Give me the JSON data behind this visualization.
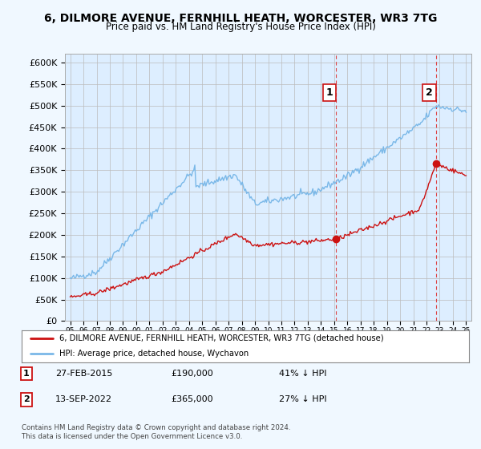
{
  "title": "6, DILMORE AVENUE, FERNHILL HEATH, WORCESTER, WR3 7TG",
  "subtitle": "Price paid vs. HM Land Registry's House Price Index (HPI)",
  "ylim": [
    0,
    620000
  ],
  "yticks": [
    0,
    50000,
    100000,
    150000,
    200000,
    250000,
    300000,
    350000,
    400000,
    450000,
    500000,
    550000,
    600000
  ],
  "ytick_labels": [
    "£0",
    "£50K",
    "£100K",
    "£150K",
    "£200K",
    "£250K",
    "£300K",
    "£350K",
    "£400K",
    "£450K",
    "£500K",
    "£550K",
    "£600K"
  ],
  "hpi_color": "#7ab8e8",
  "price_color": "#cc1111",
  "vline_color": "#dd4444",
  "transaction1_date": 2015.15,
  "transaction1_price": 190000,
  "transaction1_label": "1",
  "transaction2_date": 2022.71,
  "transaction2_price": 365000,
  "transaction2_label": "2",
  "legend_house_label": "6, DILMORE AVENUE, FERNHILL HEATH, WORCESTER, WR3 7TG (detached house)",
  "legend_hpi_label": "HPI: Average price, detached house, Wychavon",
  "annotation1_date": "27-FEB-2015",
  "annotation1_price": "£190,000",
  "annotation1_pct": "41% ↓ HPI",
  "annotation2_date": "13-SEP-2022",
  "annotation2_price": "£365,000",
  "annotation2_pct": "27% ↓ HPI",
  "footnote": "Contains HM Land Registry data © Crown copyright and database right 2024.\nThis data is licensed under the Open Government Licence v3.0.",
  "background_color": "#f0f8ff",
  "plot_bg_color": "#ddeeff",
  "grid_color": "#bbbbbb"
}
